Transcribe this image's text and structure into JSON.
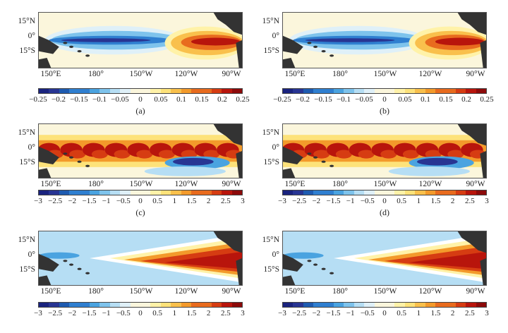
{
  "lat_labels": [
    "15°N",
    "0°",
    "15°S"
  ],
  "lon_labels": [
    "150°E",
    "180°",
    "150°W",
    "120°W",
    "90°W"
  ],
  "panels": [
    {
      "id": "a",
      "label": "(a)",
      "field": "sst_bias",
      "cbar_ticks": [
        "−0.25",
        "−0.2",
        "−0.15",
        "−0.1",
        "−0.05",
        "0",
        "0.05",
        "0.1",
        "0.15",
        "0.2",
        "0.25"
      ]
    },
    {
      "id": "b",
      "label": "(b)",
      "field": "sst_bias",
      "cbar_ticks": [
        "−0.25",
        "−0.2",
        "−0.15",
        "−0.1",
        "−0.05",
        "0",
        "0.05",
        "0.1",
        "0.15",
        "0.2",
        "0.25"
      ]
    },
    {
      "id": "c",
      "label": "(c)",
      "field": "band",
      "cbar_ticks": [
        "−3",
        "−2.5",
        "−2",
        "−1.5",
        "−1",
        "−0.5",
        "0",
        "0.5",
        "1",
        "1.5",
        "2",
        "2.5",
        "3"
      ]
    },
    {
      "id": "d",
      "label": "(d)",
      "field": "band",
      "cbar_ticks": [
        "−3",
        "−2.5",
        "−2",
        "−1.5",
        "−1",
        "−0.5",
        "0",
        "0.5",
        "1",
        "1.5",
        "2",
        "2.5",
        "3"
      ]
    },
    {
      "id": "e",
      "label": "",
      "field": "wedge",
      "cbar_ticks": [
        "−3",
        "−2.5",
        "−2",
        "−1.5",
        "−1",
        "−0.5",
        "0",
        "0.5",
        "1",
        "1.5",
        "2",
        "2.5",
        "3"
      ]
    },
    {
      "id": "f",
      "label": "",
      "field": "wedge",
      "cbar_ticks": [
        "−3",
        "−2.5",
        "−2",
        "−1.5",
        "−1",
        "−0.5",
        "0",
        "0.5",
        "1",
        "1.5",
        "2",
        "2.5",
        "3"
      ]
    }
  ],
  "colors": {
    "cold": [
      "#1a237e",
      "#283593",
      "#1e5bb0",
      "#2f7fd0",
      "#4aa3e0",
      "#7ec3ec",
      "#b6def4",
      "#dff0f8"
    ],
    "neutral": "#fbf6dc",
    "warm": [
      "#fff2a8",
      "#fde27a",
      "#f9c04c",
      "#f39a2b",
      "#e86b1e",
      "#d63c12",
      "#b8150c",
      "#8c0a0a"
    ],
    "land": "#333333"
  }
}
